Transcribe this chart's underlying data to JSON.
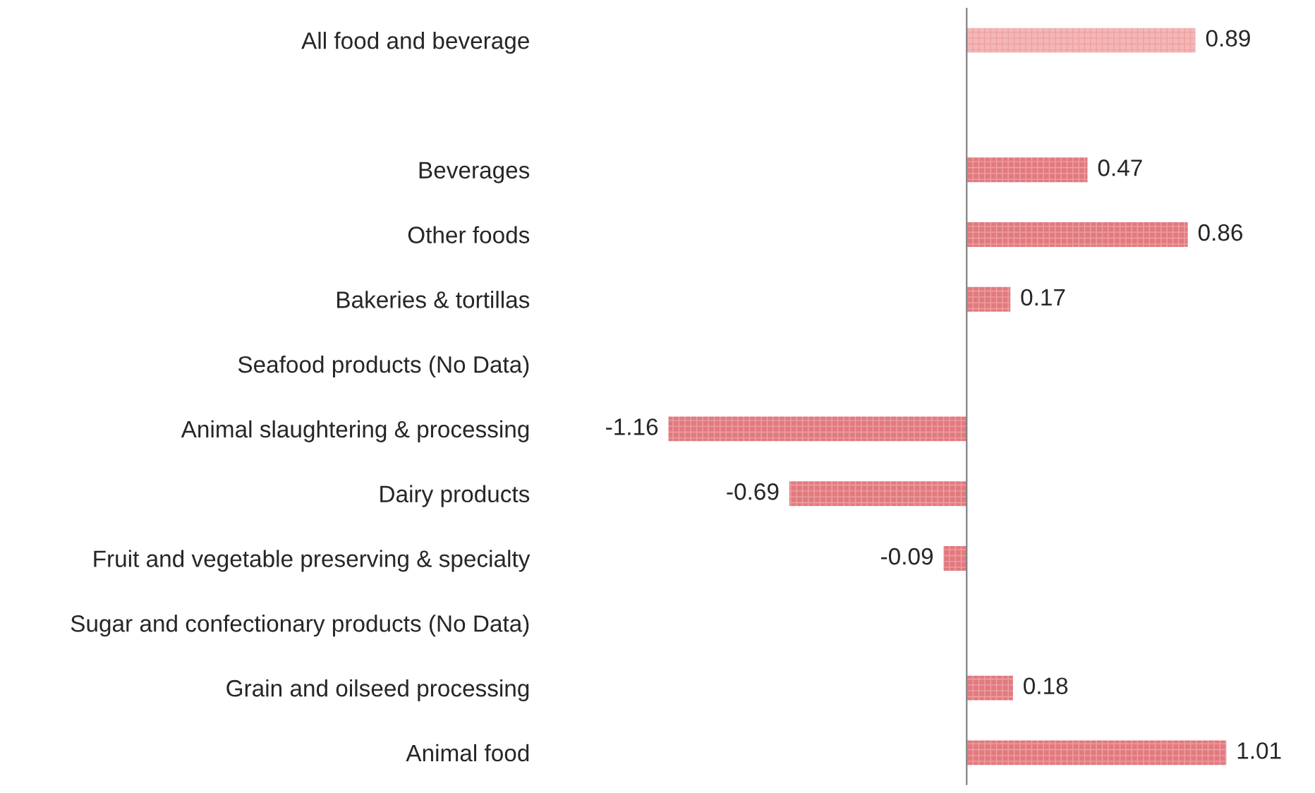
{
  "chart_data": {
    "type": "bar",
    "orientation": "horizontal",
    "categories": [
      "All food and beverage",
      null,
      "Beverages",
      "Other foods",
      "Bakeries & tortillas",
      "Seafood products (No Data)",
      "Animal slaughtering & processing",
      "Dairy products",
      "Fruit and vegetable preserving & specialty",
      "Sugar and confectionary products (No Data)",
      "Grain and oilseed processing",
      "Animal food"
    ],
    "values": [
      0.89,
      null,
      0.47,
      0.86,
      0.17,
      null,
      -1.16,
      -0.69,
      -0.09,
      null,
      0.18,
      1.01
    ],
    "colors": [
      "#f2b8b8",
      null,
      "#e07a80",
      "#e07a80",
      "#e07a80",
      null,
      "#e07a80",
      "#e07a80",
      "#e07a80",
      null,
      "#e07a80",
      "#e07a80"
    ],
    "data_labels": true,
    "grid": false,
    "legend": false
  }
}
